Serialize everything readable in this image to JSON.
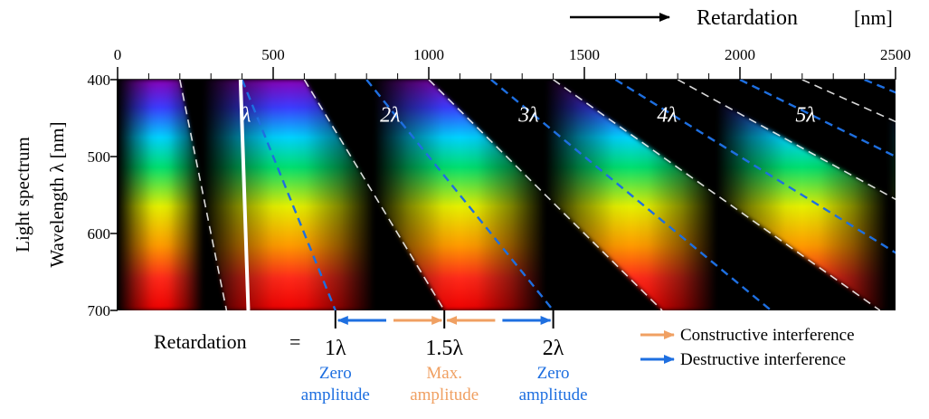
{
  "header": {
    "arrow_label": "Retardation",
    "unit": "[nm]"
  },
  "axes": {
    "x_ticks": [
      "0",
      "500",
      "1000",
      "1500",
      "2000",
      "2500"
    ],
    "y_ticks": [
      "400",
      "500",
      "600",
      "700"
    ],
    "y_label_line1": "Light spectrum",
    "y_label_line2": "Wavelength λ  [nm]",
    "x_range_nm": [
      0,
      2500
    ],
    "y_range_nm": [
      400,
      700
    ]
  },
  "orders": {
    "band_labels": [
      "λ",
      "2λ",
      "3λ",
      "4λ",
      "5λ"
    ],
    "order_values": [
      1,
      2,
      3,
      4,
      5
    ]
  },
  "markers": {
    "retardation_label": "Retardation",
    "equals": "=",
    "items": [
      {
        "label": "1λ",
        "order": 1.0,
        "sub1": "Zero",
        "sub2": "amplitude",
        "kind": "destructive"
      },
      {
        "label": "1.5λ",
        "order": 1.5,
        "sub1": "Max.",
        "sub2": "amplitude",
        "kind": "constructive"
      },
      {
        "label": "2λ",
        "order": 2.0,
        "sub1": "Zero",
        "sub2": "amplitude",
        "kind": "destructive"
      }
    ]
  },
  "legend": {
    "constructive": "Constructive interference",
    "destructive": "Destructive interference"
  },
  "colors": {
    "destructive": "#1e6fe0",
    "constructive": "#f0a062",
    "background": "#000000"
  }
}
